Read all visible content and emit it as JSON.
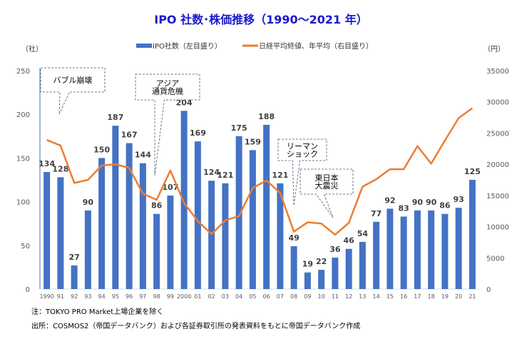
{
  "chart_data": {
    "type": "bar+line",
    "title": "IPO 社数･株価推移（1990〜2021 年）",
    "y_left_unit": "（社）",
    "y_right_unit": "（円）",
    "legend": [
      "IPO社数（左目盛り）",
      "日経平均終値、年平均（右目盛り）"
    ],
    "legend_placement": "top",
    "categories": [
      "1990",
      "91",
      "92",
      "93",
      "94",
      "95",
      "96",
      "97",
      "98",
      "99",
      "2000",
      "01",
      "02",
      "03",
      "04",
      "05",
      "06",
      "07",
      "08",
      "09",
      "10",
      "11",
      "12",
      "13",
      "14",
      "15",
      "16",
      "17",
      "18",
      "19",
      "20",
      "21"
    ],
    "y_left_ticks": [
      "0",
      "50",
      "100",
      "150",
      "200",
      "250"
    ],
    "y_right_ticks": [
      "0",
      "5000",
      "10000",
      "15000",
      "20000",
      "25000",
      "30000",
      "35000"
    ],
    "ylim_left": [
      0,
      250
    ],
    "ylim_right": [
      0,
      35000
    ],
    "grid": false,
    "series": [
      {
        "name": "IPO社数（左目盛り）",
        "type": "bar",
        "axis": "left",
        "color": "#4472c4",
        "values": [
          134,
          128,
          27,
          90,
          150,
          187,
          167,
          144,
          86,
          107,
          204,
          169,
          124,
          121,
          175,
          159,
          188,
          121,
          49,
          19,
          22,
          36,
          46,
          54,
          77,
          92,
          83,
          90,
          90,
          86,
          93,
          125
        ]
      },
      {
        "name": "日経平均終値、年平均（右目盛り）",
        "type": "line",
        "axis": "right",
        "color": "#ed7d31",
        "values": [
          23900,
          23000,
          17000,
          17500,
          19800,
          20000,
          19400,
          15300,
          14300,
          19000,
          13800,
          10900,
          8800,
          11000,
          11700,
          16200,
          17400,
          15400,
          9200,
          10700,
          10500,
          8700,
          10600,
          16400,
          17600,
          19200,
          19200,
          22900,
          20100,
          23800,
          27400,
          29000
        ]
      }
    ],
    "annotations": [
      {
        "text": [
          "バブル崩壊"
        ],
        "category": "91"
      },
      {
        "text": [
          "アジア",
          "通貨危機"
        ],
        "category": "98"
      },
      {
        "text": [
          "リーマン",
          "ショック"
        ],
        "category": "08"
      },
      {
        "text": [
          "東日本",
          "大震災"
        ],
        "category": "11"
      }
    ]
  },
  "footer": {
    "note": "注：TOKYO PRO Market上場企業を除く",
    "source": "出所：COSMOS2（帝国データバンク）および各証券取引所の発表資料をもとに帝国データバンク作成"
  }
}
